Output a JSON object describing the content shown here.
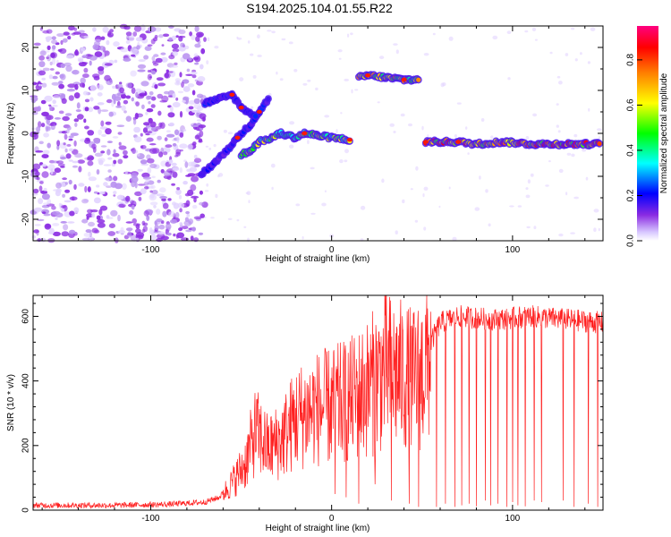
{
  "title": "S194.2025.104.01.55.R22",
  "chart_data": [
    {
      "type": "heatmap",
      "xlabel": "Height of straight line (km)",
      "ylabel": "Frequency (Hz)",
      "xlim": [
        -165,
        150
      ],
      "ylim": [
        -25,
        25
      ],
      "xticks": [
        -100,
        0,
        100
      ],
      "yticks": [
        -20,
        -10,
        0,
        10,
        20
      ],
      "colorbar": {
        "label": "Normalized spectral amplitude",
        "range": [
          0,
          0.95
        ],
        "ticks": [
          0.0,
          0.2,
          0.4,
          0.6,
          0.8
        ],
        "colormap": [
          "#e8d8ff",
          "#8a2be2",
          "#0000ff",
          "#00ffff",
          "#00ff00",
          "#ffff00",
          "#ff8000",
          "#ff0000",
          "#ff0080"
        ]
      },
      "features": [
        {
          "name": "noise",
          "x_range": [
            -165,
            -70
          ],
          "freq_range": [
            -25,
            25
          ],
          "amplitude": 0.05
        },
        {
          "name": "trace-a",
          "points": [
            [
              -72,
              -9.5
            ],
            [
              -65,
              -7
            ],
            [
              -58,
              -4
            ],
            [
              -52,
              -1
            ],
            [
              -45,
              2
            ],
            [
              -40,
              5
            ],
            [
              -35,
              8
            ]
          ],
          "amplitude": 0.25
        },
        {
          "name": "trace-b",
          "points": [
            [
              -70,
              7
            ],
            [
              -62,
              8
            ],
            [
              -55,
              9
            ],
            [
              -50,
              6
            ],
            [
              -42,
              4
            ]
          ],
          "amplitude": 0.25
        },
        {
          "name": "trace-c",
          "points": [
            [
              -50,
              -5
            ],
            [
              -45,
              -4
            ],
            [
              -40,
              -2
            ],
            [
              -33,
              -1
            ],
            [
              -28,
              0
            ],
            [
              -20,
              -1
            ],
            [
              -15,
              0
            ],
            [
              -8,
              -0.5
            ],
            [
              0,
              -1
            ],
            [
              10,
              -1.5
            ]
          ],
          "amplitude": 0.6
        },
        {
          "name": "trace-d",
          "points": [
            [
              15,
              13
            ],
            [
              20,
              13.5
            ],
            [
              30,
              13
            ],
            [
              40,
              12.5
            ],
            [
              48,
              12.5
            ]
          ],
          "amplitude": 0.7
        },
        {
          "name": "trace-e",
          "points": [
            [
              52,
              -2
            ],
            [
              70,
              -2
            ],
            [
              80,
              -2.5
            ],
            [
              95,
              -2
            ],
            [
              110,
              -2.5
            ],
            [
              130,
              -2.5
            ],
            [
              148,
              -2.5
            ]
          ],
          "amplitude": 0.85
        }
      ]
    },
    {
      "type": "line",
      "xlabel": "Height of straight line (km)",
      "ylabel": "SNR (10 * v/v)",
      "xlim": [
        -165,
        150
      ],
      "ylim": [
        0,
        665
      ],
      "xticks": [
        -100,
        0,
        100
      ],
      "yticks": [
        0,
        200,
        400,
        600
      ],
      "color": "#ff2020",
      "envelope": [
        {
          "x": -165,
          "y": 15
        },
        {
          "x": -120,
          "y": 15
        },
        {
          "x": -90,
          "y": 18
        },
        {
          "x": -70,
          "y": 25
        },
        {
          "x": -62,
          "y": 40
        },
        {
          "x": -55,
          "y": 90
        },
        {
          "x": -48,
          "y": 150
        },
        {
          "x": -42,
          "y": 260
        },
        {
          "x": -35,
          "y": 200
        },
        {
          "x": -28,
          "y": 230
        },
        {
          "x": -20,
          "y": 300
        },
        {
          "x": -10,
          "y": 330
        },
        {
          "x": 0,
          "y": 340
        },
        {
          "x": 10,
          "y": 360
        },
        {
          "x": 20,
          "y": 400
        },
        {
          "x": 30,
          "y": 460
        },
        {
          "x": 38,
          "y": 440
        },
        {
          "x": 45,
          "y": 420
        },
        {
          "x": 50,
          "y": 450
        },
        {
          "x": 55,
          "y": 520
        },
        {
          "x": 60,
          "y": 580
        },
        {
          "x": 70,
          "y": 600
        },
        {
          "x": 90,
          "y": 590
        },
        {
          "x": 110,
          "y": 600
        },
        {
          "x": 130,
          "y": 590
        },
        {
          "x": 150,
          "y": 580
        }
      ],
      "dropouts": [
        {
          "x": 2,
          "y": 50
        },
        {
          "x": 8,
          "y": 40
        },
        {
          "x": 15,
          "y": 20
        },
        {
          "x": 24,
          "y": 80
        },
        {
          "x": 33,
          "y": 30
        },
        {
          "x": 43,
          "y": 20
        },
        {
          "x": 48,
          "y": 10
        },
        {
          "x": 58,
          "y": 10
        },
        {
          "x": 63,
          "y": 20
        },
        {
          "x": 68,
          "y": 10
        },
        {
          "x": 72,
          "y": 15
        },
        {
          "x": 76,
          "y": 20
        },
        {
          "x": 80,
          "y": 12
        },
        {
          "x": 85,
          "y": 30
        },
        {
          "x": 88,
          "y": 15
        },
        {
          "x": 92,
          "y": 20
        },
        {
          "x": 97,
          "y": 10
        },
        {
          "x": 100,
          "y": 25
        },
        {
          "x": 103,
          "y": 15
        },
        {
          "x": 107,
          "y": 12
        },
        {
          "x": 112,
          "y": 30
        },
        {
          "x": 116,
          "y": 25
        },
        {
          "x": 128,
          "y": 30
        },
        {
          "x": 134,
          "y": 10
        },
        {
          "x": 142,
          "y": 20
        },
        {
          "x": 147,
          "y": 10
        }
      ]
    }
  ]
}
